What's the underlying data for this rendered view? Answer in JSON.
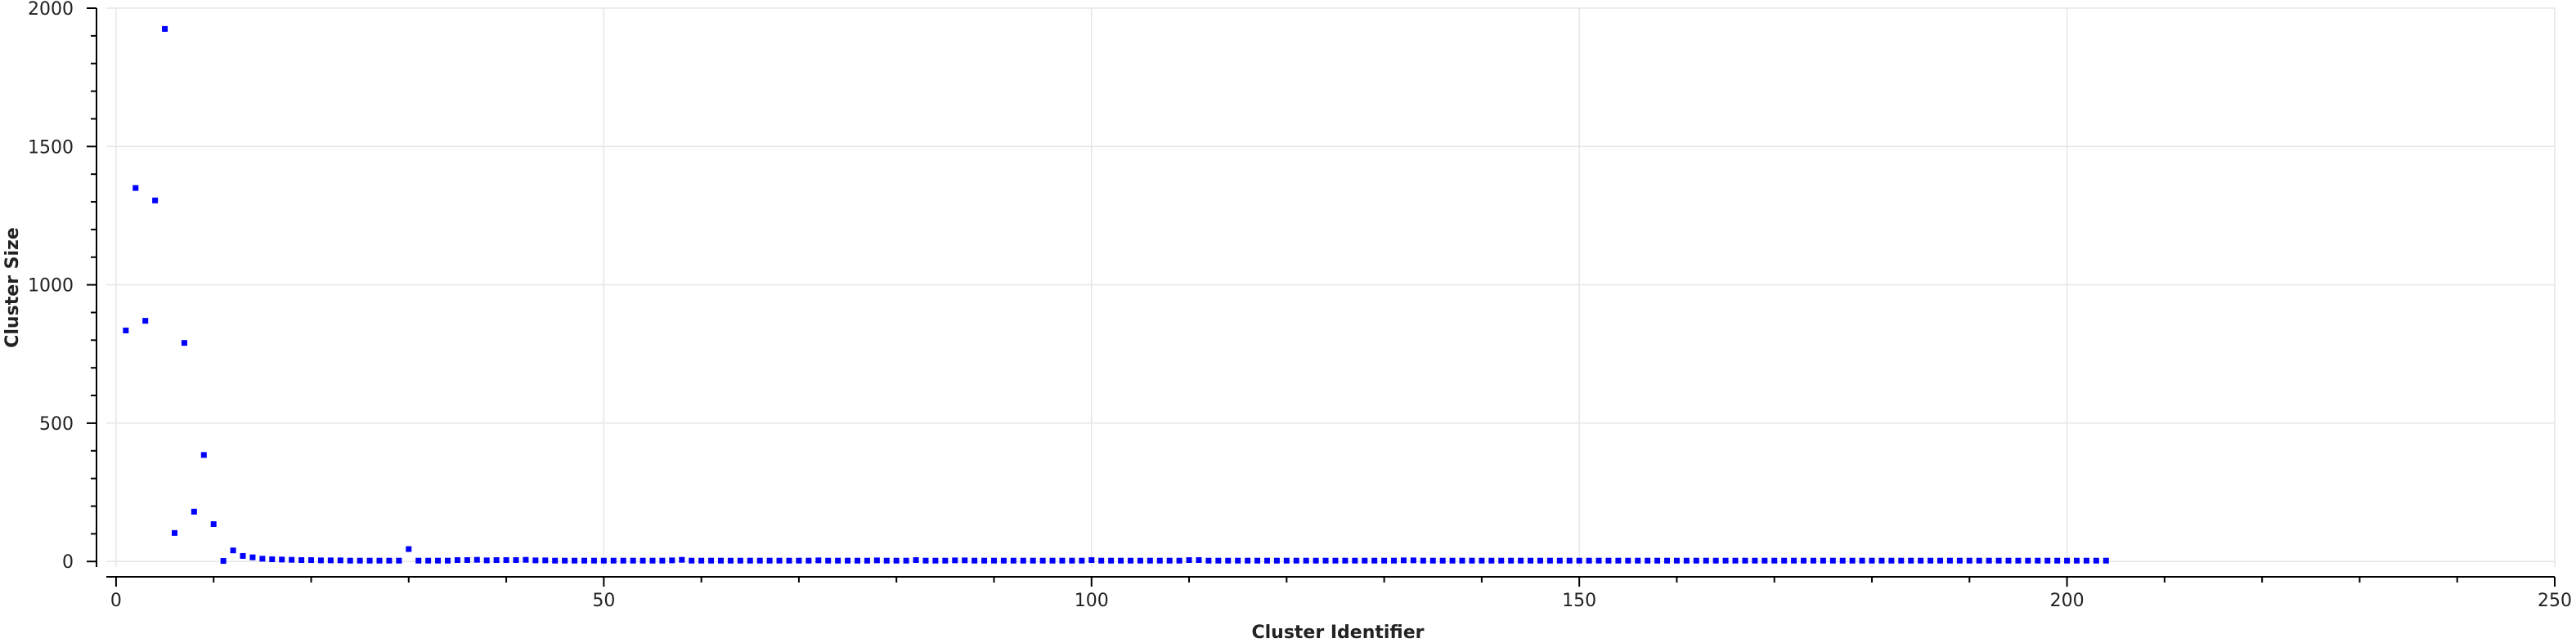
{
  "chart_data": {
    "type": "scatter",
    "title": "",
    "xlabel": "Cluster Identifier",
    "ylabel": "Cluster Size",
    "xlim": [
      -1,
      250
    ],
    "ylim": [
      -20,
      2000
    ],
    "xticks": [
      0,
      50,
      100,
      150,
      200,
      250
    ],
    "yticks": [
      0,
      500,
      1000,
      1500,
      2000
    ],
    "x_minor_step": 10,
    "y_minor_step": 100,
    "grid": true,
    "marker_color": "#0000ff",
    "series": [
      {
        "x": [
          1,
          2,
          3,
          4,
          5,
          6,
          7,
          8,
          9,
          10,
          11,
          12,
          13,
          14,
          15,
          16,
          17,
          18,
          19,
          20,
          21,
          22,
          23,
          24,
          25,
          26,
          27,
          28,
          29,
          30,
          31,
          32,
          33,
          34,
          35,
          36,
          37,
          38,
          39,
          40,
          41,
          42,
          43,
          44,
          45,
          46,
          47,
          48,
          49,
          50,
          51,
          52,
          53,
          54,
          55,
          56,
          57,
          58,
          59,
          60,
          61,
          62,
          63,
          64,
          65,
          66,
          67,
          68,
          69,
          70,
          71,
          72,
          73,
          74,
          75,
          76,
          77,
          78,
          79,
          80,
          81,
          82,
          83,
          84,
          85,
          86,
          87,
          88,
          89,
          90,
          91,
          92,
          93,
          94,
          95,
          96,
          97,
          98,
          99,
          100,
          101,
          102,
          103,
          104,
          105,
          106,
          107,
          108,
          109,
          110,
          111,
          112,
          113,
          114,
          115,
          116,
          117,
          118,
          119,
          120,
          121,
          122,
          123,
          124,
          125,
          126,
          127,
          128,
          129,
          130,
          131,
          132,
          133,
          134,
          135,
          136,
          137,
          138,
          139,
          140,
          141,
          142,
          143,
          144,
          145,
          146,
          147,
          148,
          149,
          150,
          151,
          152,
          153,
          154,
          155,
          156,
          157,
          158,
          159,
          160,
          161,
          162,
          163,
          164,
          165,
          166,
          167,
          168,
          169,
          170,
          171,
          172,
          173,
          174,
          175,
          176,
          177,
          178,
          179,
          180,
          181,
          182,
          183,
          184,
          185,
          186,
          187,
          188,
          189,
          190,
          191,
          192,
          193,
          194,
          195,
          196,
          197,
          198,
          199,
          200,
          201,
          202,
          203,
          204
        ],
        "y": [
          835,
          1350,
          870,
          1305,
          1925,
          103,
          790,
          180,
          385,
          135,
          2,
          40,
          20,
          15,
          10,
          8,
          7,
          6,
          5,
          5,
          4,
          4,
          4,
          3,
          3,
          3,
          3,
          3,
          3,
          45,
          3,
          3,
          3,
          3,
          5,
          5,
          6,
          4,
          5,
          5,
          5,
          6,
          4,
          4,
          3,
          3,
          3,
          3,
          3,
          3,
          3,
          3,
          3,
          3,
          3,
          3,
          4,
          6,
          3,
          3,
          3,
          3,
          3,
          3,
          3,
          3,
          3,
          3,
          3,
          3,
          3,
          4,
          3,
          3,
          3,
          3,
          3,
          4,
          3,
          3,
          3,
          5,
          3,
          3,
          3,
          4,
          4,
          3,
          3,
          3,
          3,
          3,
          3,
          3,
          3,
          3,
          3,
          3,
          3,
          5,
          3,
          3,
          3,
          3,
          3,
          3,
          3,
          3,
          3,
          5,
          5,
          3,
          3,
          3,
          3,
          3,
          3,
          3,
          3,
          3,
          3,
          3,
          3,
          3,
          3,
          3,
          3,
          3,
          3,
          3,
          3,
          4,
          4,
          3,
          3,
          3,
          3,
          3,
          3,
          3,
          3,
          3,
          3,
          3,
          3,
          3,
          3,
          3,
          3,
          3,
          3,
          3,
          3,
          3,
          3,
          3,
          3,
          3,
          3,
          3,
          3,
          3,
          3,
          3,
          3,
          3,
          3,
          3,
          3,
          3,
          3,
          3,
          3,
          3,
          3,
          3,
          3,
          3,
          3,
          3,
          3,
          3,
          3,
          3,
          3,
          3,
          3,
          3,
          3,
          3,
          3,
          3,
          3,
          3,
          3,
          3,
          3,
          3,
          3,
          3,
          3,
          3,
          3,
          3
        ]
      }
    ]
  }
}
